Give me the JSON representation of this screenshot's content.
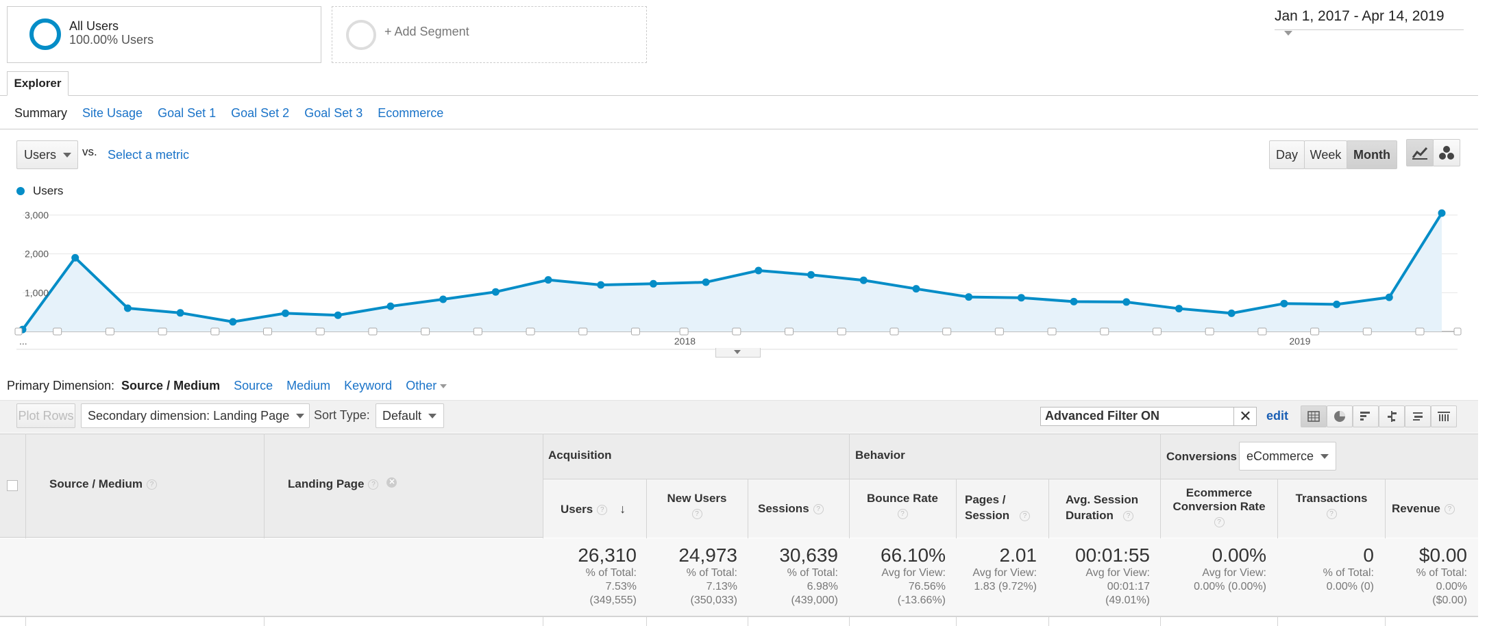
{
  "segments": {
    "all_users_title": "All Users",
    "all_users_sub": "100.00% Users",
    "add_segment": "+ Add Segment"
  },
  "date_range": "Jan 1, 2017 - Apr 14, 2019",
  "explorer_tab": "Explorer",
  "subtabs": [
    "Summary",
    "Site Usage",
    "Goal Set 1",
    "Goal Set 2",
    "Goal Set 3",
    "Ecommerce"
  ],
  "metric": {
    "selected": "Users",
    "vs": "vs.",
    "select_metric": "Select a metric"
  },
  "granularity": {
    "day": "Day",
    "week": "Week",
    "month": "Month",
    "active": "Month"
  },
  "chart_data": {
    "type": "line",
    "legend": "Users",
    "series": [
      {
        "name": "Users",
        "color": "#058dc7",
        "values": [
          50,
          1900,
          600,
          480,
          250,
          470,
          420,
          650,
          830,
          1020,
          1330,
          1200,
          1230,
          1270,
          1570,
          1460,
          1320,
          1100,
          890,
          870,
          770,
          760,
          590,
          470,
          720,
          700,
          880,
          3050
        ]
      }
    ],
    "ylim": [
      0,
      3000
    ],
    "y_ticks": [
      "3,000",
      "2,000",
      "1,000"
    ],
    "x_labels": [
      {
        "label": "2018",
        "index": 12.6
      },
      {
        "label": "2019",
        "index": 24.3
      }
    ],
    "first_label": "..."
  },
  "primary_dimension": {
    "label": "Primary Dimension:",
    "active": "Source / Medium",
    "options": [
      "Source",
      "Medium",
      "Keyword",
      "Other"
    ]
  },
  "toolbar": {
    "plot_rows": "Plot Rows",
    "secondary": "Secondary dimension: Landing Page",
    "sort_label": "Sort Type:",
    "sort_value": "Default",
    "filter": "Advanced Filter ON",
    "edit": "edit"
  },
  "table": {
    "col_source": "Source / Medium",
    "col_landing": "Landing Page",
    "group_acq": "Acquisition",
    "group_beh": "Behavior",
    "group_conv": "Conversions",
    "conv_select": "eCommerce",
    "cols": [
      "Users",
      "New Users",
      "Sessions",
      "Bounce Rate",
      "Pages / Session",
      "Avg. Session Duration",
      "Ecommerce Conversion Rate",
      "Transactions",
      "Revenue"
    ],
    "totals": [
      {
        "big": "26,310",
        "l1": "% of Total:",
        "l2": "7.53%",
        "l3": "(349,555)"
      },
      {
        "big": "24,973",
        "l1": "% of Total:",
        "l2": "7.13%",
        "l3": "(350,033)"
      },
      {
        "big": "30,639",
        "l1": "% of Total:",
        "l2": "6.98%",
        "l3": "(439,000)"
      },
      {
        "big": "66.10%",
        "l1": "Avg for View:",
        "l2": "76.56%",
        "l3": "(-13.66%)"
      },
      {
        "big": "2.01",
        "l1": "Avg for View:",
        "l2": "1.83 (9.72%)",
        "l3": ""
      },
      {
        "big": "00:01:55",
        "l1": "Avg for View:",
        "l2": "00:01:17",
        "l3": "(49.01%)"
      },
      {
        "big": "0.00%",
        "l1": "Avg for View:",
        "l2": "0.00% (0.00%)",
        "l3": ""
      },
      {
        "big": "0",
        "l1": "% of Total:",
        "l2": "0.00% (0)",
        "l3": ""
      },
      {
        "big": "$0.00",
        "l1": "% of Total:",
        "l2": "0.00%",
        "l3": "($0.00)"
      }
    ]
  }
}
